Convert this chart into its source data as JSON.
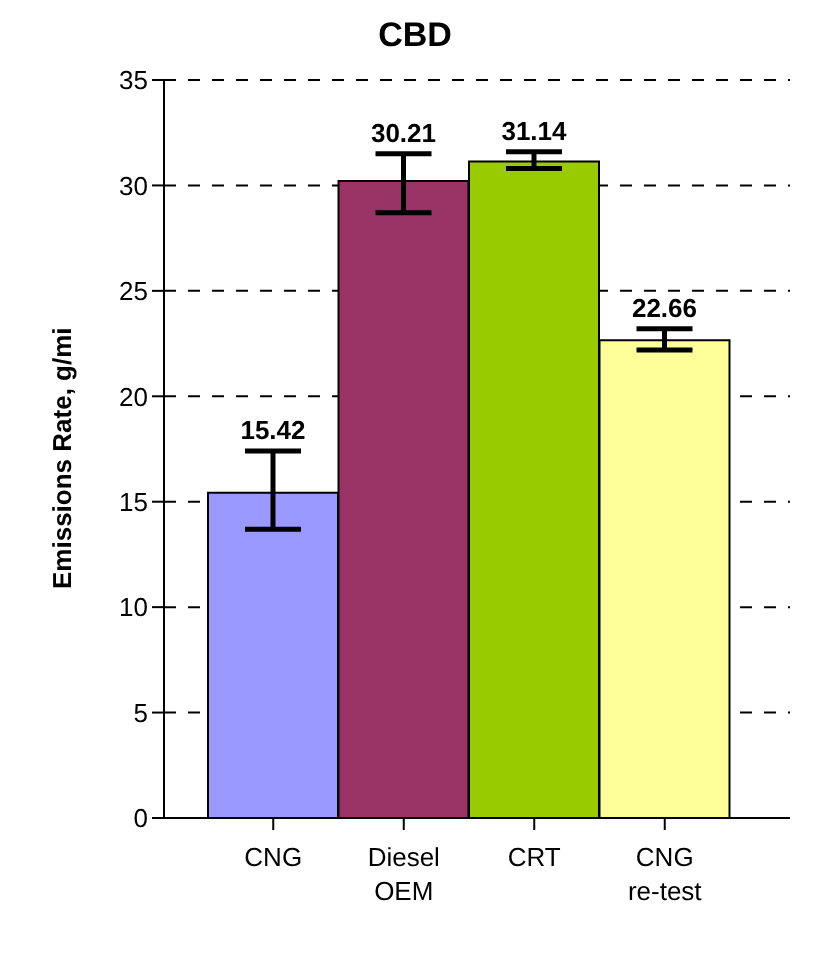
{
  "chart_data": {
    "type": "bar",
    "title": "CBD",
    "ylabel": "Emissions Rate, g/mi",
    "categories": [
      "CNG",
      "Diesel OEM",
      "CRT",
      "CNG re-test"
    ],
    "values": [
      15.42,
      30.21,
      31.14,
      22.66
    ],
    "colors": [
      "#9999ff",
      "#993366",
      "#99cc00",
      "#ffff99"
    ],
    "errors": [
      [
        13.7,
        17.4
      ],
      [
        28.7,
        31.5
      ],
      [
        30.8,
        31.6
      ],
      [
        22.2,
        23.2
      ]
    ],
    "ylim": [
      0,
      35
    ],
    "yticks": [
      0,
      5,
      10,
      15,
      20,
      25,
      30,
      35
    ],
    "grid": "y",
    "data_labels": true
  }
}
